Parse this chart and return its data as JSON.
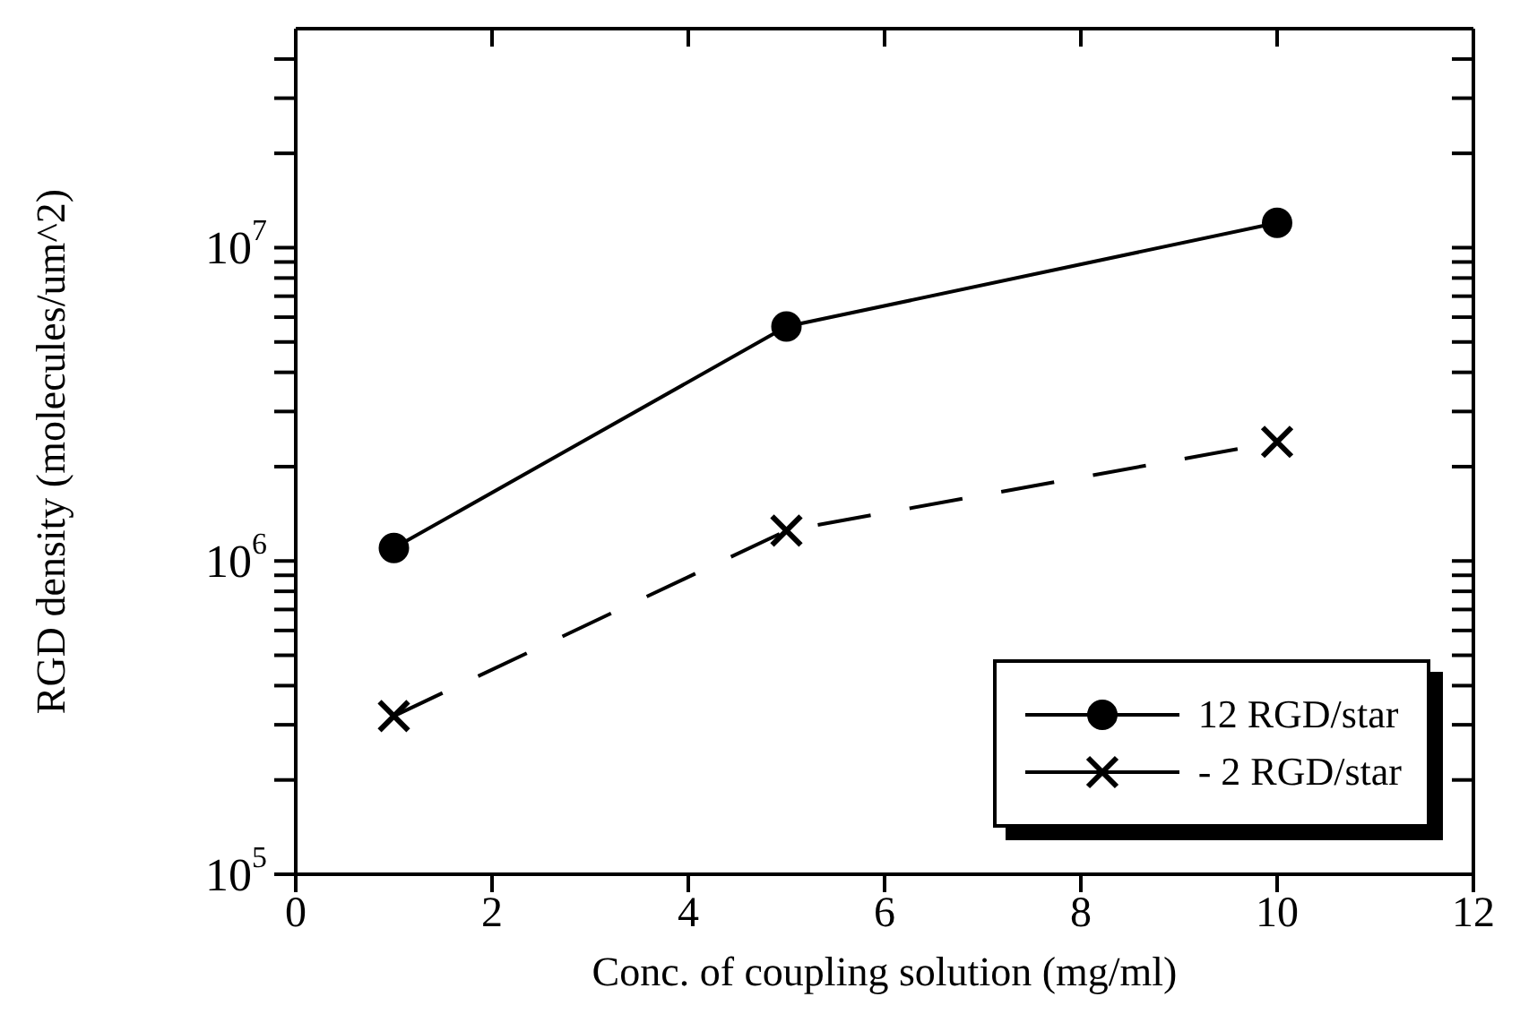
{
  "chart_data": {
    "type": "line",
    "xlabel": "Conc. of coupling solution (mg/ml)",
    "ylabel": "RGD density (molecules/um^2)",
    "x": [
      1,
      5,
      10
    ],
    "series": [
      {
        "name": "12 RGD/star",
        "color": "#000000",
        "values": [
          1100000,
          5600000,
          12000000
        ],
        "marker": "circle",
        "line_style": "solid"
      },
      {
        "name": "- 2 RGD/star",
        "color": "#000000",
        "values": [
          320000,
          1250000,
          2400000
        ],
        "marker": "cross",
        "line_style": "dashed"
      }
    ],
    "xlim": [
      0,
      12
    ],
    "xticks": [
      0,
      2,
      4,
      6,
      8,
      10,
      12
    ],
    "ylim": [
      100000,
      50000000
    ],
    "yticks": [
      {
        "value": 100000,
        "label": "10$^{5}$"
      },
      {
        "value": 200000,
        "label": null
      },
      {
        "value": 300000,
        "label": null
      },
      {
        "value": 400000,
        "label": null
      },
      {
        "value": 500000,
        "label": null
      },
      {
        "value": 600000,
        "label": null
      },
      {
        "value": 700000,
        "label": null
      },
      {
        "value": 800000,
        "label": null
      },
      {
        "value": 900000,
        "label": null
      },
      {
        "value": 1000000,
        "label": "10$^{6}$"
      },
      {
        "value": 2000000,
        "label": null
      },
      {
        "value": 3000000,
        "label": null
      },
      {
        "value": 4000000,
        "label": null
      },
      {
        "value": 5000000,
        "label": null
      },
      {
        "value": 6000000,
        "label": null
      },
      {
        "value": 7000000,
        "label": null
      },
      {
        "value": 8000000,
        "label": null
      },
      {
        "value": 9000000,
        "label": null
      },
      {
        "value": 10000000,
        "label": "10$^{7}$"
      },
      {
        "value": 20000000,
        "label": null
      },
      {
        "value": 30000000,
        "label": null
      },
      {
        "value": 40000000,
        "label": null
      }
    ],
    "log": "y",
    "grid": false,
    "legend": "bottom right"
  }
}
